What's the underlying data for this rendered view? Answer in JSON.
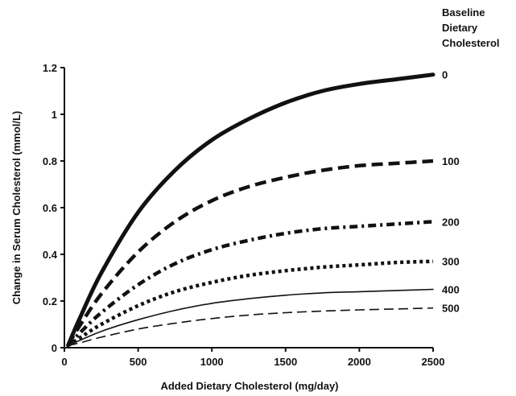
{
  "chart_data": {
    "type": "line",
    "xlabel": "Added Dietary Cholesterol (mg/day)",
    "ylabel": "Change in Serum Cholesterol (mmol/L)",
    "xlim": [
      0,
      2500
    ],
    "ylim": [
      0,
      1.2
    ],
    "x_ticks": [
      0,
      500,
      1000,
      1500,
      2000,
      2500
    ],
    "y_ticks": [
      0,
      0.2,
      0.4,
      0.6,
      0.8,
      1,
      1.2
    ],
    "x_tick_labels": [
      "0",
      "500",
      "1000",
      "1500",
      "2000",
      "2500"
    ],
    "y_tick_labels": [
      "0",
      "0.2",
      "0.4",
      "0.6",
      "0.8",
      "1",
      "1.2"
    ],
    "legend_title": [
      "Baseline",
      "Dietary",
      "Cholesterol"
    ],
    "grid": false,
    "x": [
      25,
      100,
      250,
      500,
      750,
      1000,
      1250,
      1500,
      1750,
      2000,
      2250,
      2500
    ],
    "series": [
      {
        "name": "0",
        "style": "solid-thick",
        "values": [
          0.01,
          0.12,
          0.32,
          0.58,
          0.76,
          0.89,
          0.98,
          1.05,
          1.1,
          1.13,
          1.15,
          1.17
        ]
      },
      {
        "name": "100",
        "style": "dashed-thick",
        "values": [
          0.01,
          0.09,
          0.23,
          0.41,
          0.54,
          0.63,
          0.69,
          0.73,
          0.76,
          0.78,
          0.79,
          0.8
        ]
      },
      {
        "name": "200",
        "style": "dashdot",
        "values": [
          0.01,
          0.06,
          0.15,
          0.27,
          0.36,
          0.42,
          0.46,
          0.49,
          0.51,
          0.52,
          0.53,
          0.54
        ]
      },
      {
        "name": "300",
        "style": "dotted",
        "values": [
          0.01,
          0.04,
          0.1,
          0.18,
          0.24,
          0.28,
          0.31,
          0.33,
          0.345,
          0.355,
          0.365,
          0.37
        ]
      },
      {
        "name": "400",
        "style": "solid-thin",
        "values": [
          0.01,
          0.03,
          0.07,
          0.12,
          0.16,
          0.19,
          0.21,
          0.225,
          0.235,
          0.24,
          0.245,
          0.25
        ]
      },
      {
        "name": "500",
        "style": "dashed-thin",
        "values": [
          0.01,
          0.02,
          0.045,
          0.08,
          0.105,
          0.125,
          0.14,
          0.15,
          0.157,
          0.162,
          0.166,
          0.17
        ]
      }
    ]
  }
}
